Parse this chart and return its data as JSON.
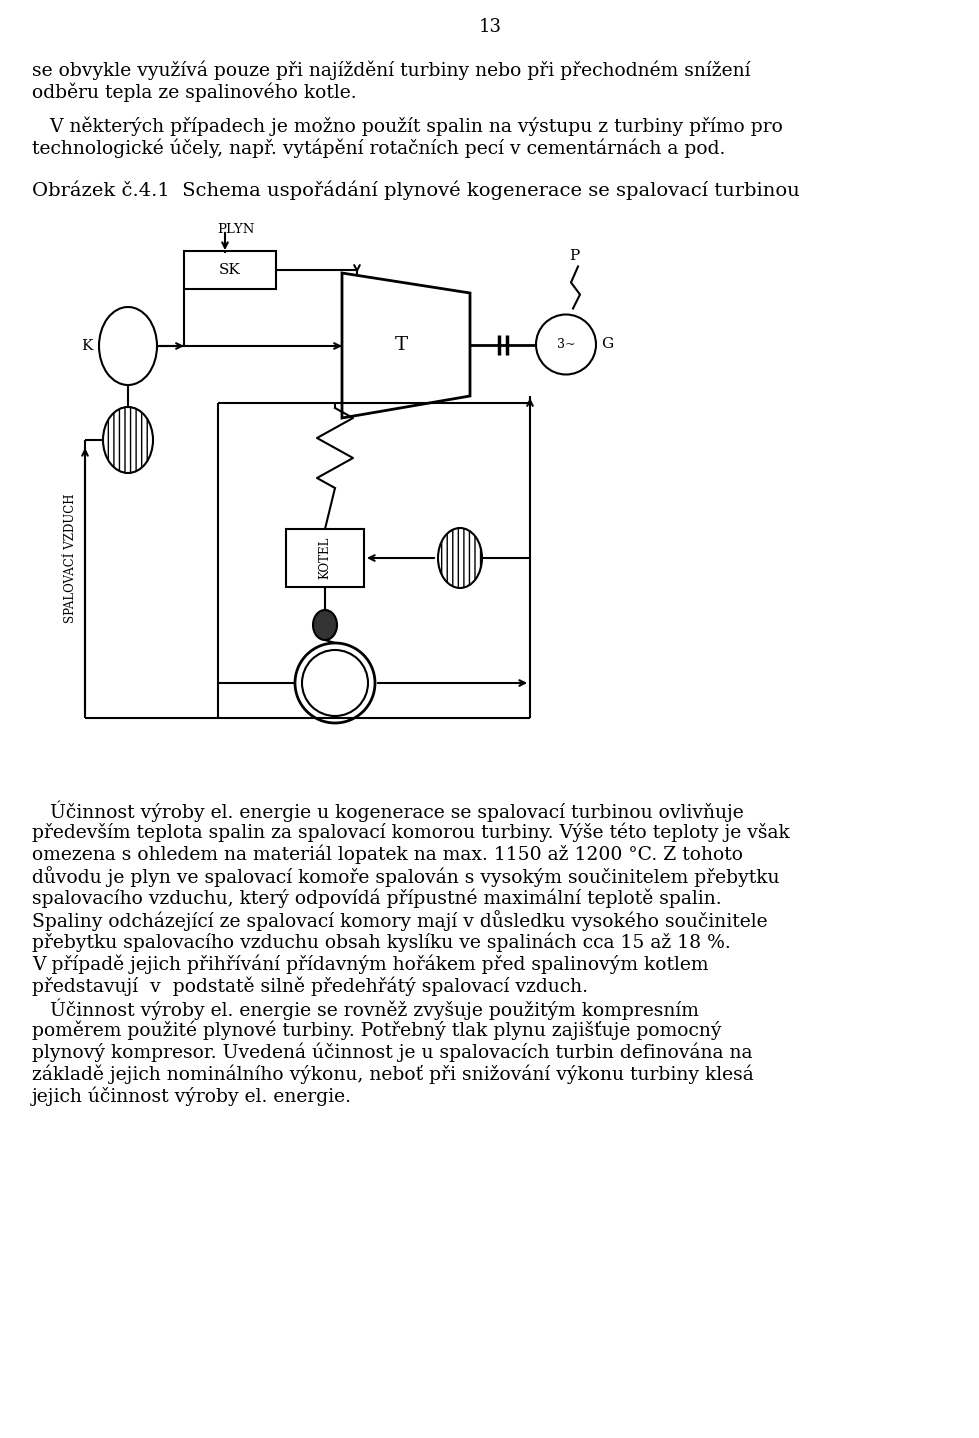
{
  "page_number": "13",
  "bg": "#ffffff",
  "lc": "#000000",
  "tc": "#000000",
  "p1l1": "se obvykle využívá pouze při najíždění turbiny nebo při přechodném snížení",
  "p1l2": "odběru tepla ze spalinového kotle.",
  "p2l1": "   V některých případech je možno použít spalin na výstupu z turbiny přímo pro",
  "p2l2": "technologické účely, např. vytápění rotačních pecí v cementárnách a pod.",
  "fig_label": "Obrázek č.4.1  Schema uspořádání plynové kogenerace se spalovací turbinou",
  "cl1": "   Účinnost výroby el. energie u kogenerace se spalovací turbinou ovlivňuje",
  "cl2": "především teplota spalin za spalovací komorou turbiny. Výše této teploty je však",
  "cl3": "omezena s ohledem na materiál lopatek na max. 1150 až 1200 °C. Z tohoto",
  "cl4": "důvodu je plyn ve spalovací komoře spalován s vysokým součinitelem přebytku",
  "cl5": "spalovacího vzduchu, který odpovídá přípustné maximální teplotě spalin.",
  "cl6": "Spaliny odcházející ze spalovací komory mají v důsledku vysokého součinitele",
  "cl7": "přebytku spalovacího vzduchu obsah kyslíku ve spalinách cca 15 až 18 %.",
  "cl8": "V případě jejich přihřívání přídavným hořákem před spalinovým kotlem",
  "cl9": "představují  v  podstatě silně předehřátý spalovací vzduch.",
  "cl10": "   Účinnost výroby el. energie se rovněž zvyšuje použitým kompresním",
  "cl11": "poměrem použité plynové turbiny. Potřebný tlak plynu zajišťuje pomocný",
  "cl12": "plynový kompresor. Uvedená účinnost je u spalovacích turbin definována na",
  "cl13": "základě jejich nominálního výkonu, neboť při snižování výkonu turbiny klesá",
  "cl14": "jejich účinnost výroby el. energie."
}
